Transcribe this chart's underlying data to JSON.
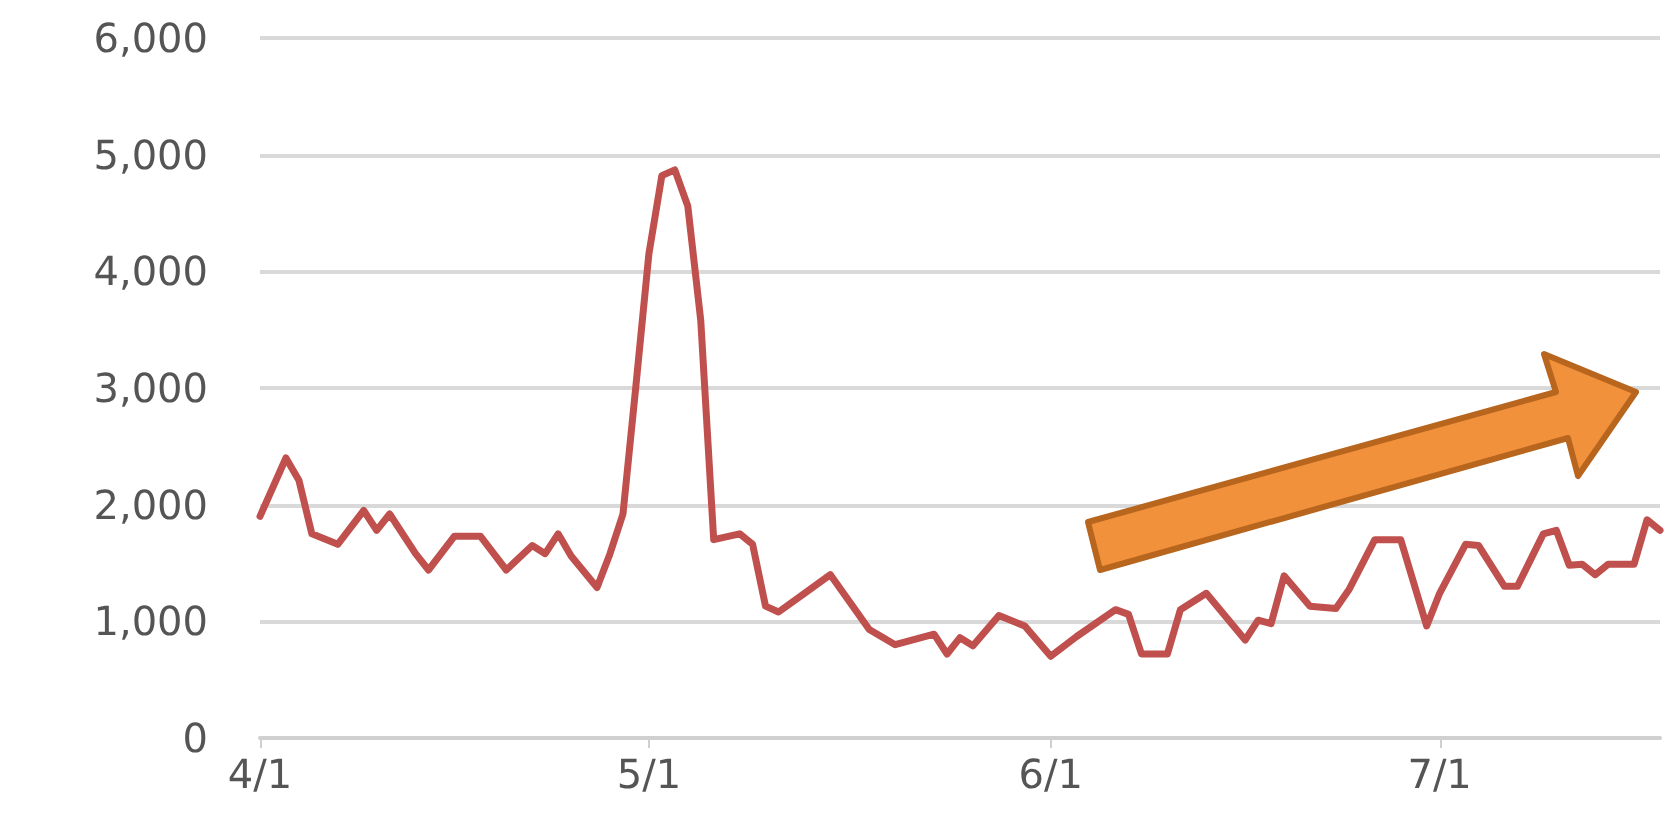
{
  "chart_data": {
    "type": "line",
    "line_style": "solid",
    "marker": "none",
    "grid": "y",
    "x": [
      "--04-01",
      "--04-03",
      "--04-04",
      "--04-05",
      "--04-07",
      "--04-09",
      "--04-10",
      "--04-11",
      "--04-13",
      "--04-14",
      "--04-16",
      "--04-18",
      "--04-20",
      "--04-22",
      "--04-23",
      "--04-24",
      "--04-25",
      "--04-27",
      "--04-28",
      "--04-29",
      "--04-30",
      "--05-01",
      "--05-02",
      "--05-03",
      "--05-04",
      "--05-05",
      "--05-06",
      "--05-08",
      "--05-09",
      "--05-10",
      "--05-11",
      "--05-13",
      "--05-15",
      "--05-18",
      "--05-20",
      "--05-23",
      "--05-24",
      "--05-25",
      "--05-26",
      "--05-28",
      "--05-30",
      "--06-01",
      "--06-03",
      "--06-06",
      "--06-07",
      "--06-08",
      "--06-10",
      "--06-11",
      "--06-13",
      "--06-16",
      "--06-17",
      "--06-18",
      "--06-19",
      "--06-21",
      "--06-23",
      "--06-24",
      "--06-26",
      "--06-28",
      "--06-30",
      "--07-01",
      "--07-03",
      "--07-04",
      "--07-06",
      "--07-07",
      "--07-09",
      "--07-10",
      "--07-11",
      "--07-12",
      "--07-13",
      "--07-14",
      "--07-16",
      "--07-17",
      "--07-18"
    ],
    "series": [
      {
        "color": "#c0504d",
        "values": [
          1900,
          2400,
          2210,
          1750,
          1660,
          1950,
          1780,
          1920,
          1580,
          1440,
          1730,
          1730,
          1440,
          1650,
          1580,
          1750,
          1560,
          1290,
          1580,
          1920,
          3020,
          4150,
          4820,
          4870,
          4560,
          3580,
          1700,
          1750,
          1660,
          1130,
          1080,
          1240,
          1400,
          930,
          800,
          890,
          720,
          860,
          790,
          1050,
          960,
          700,
          870,
          1100,
          1060,
          720,
          720,
          1100,
          1240,
          840,
          1010,
          980,
          1390,
          1130,
          1110,
          1270,
          1700,
          1700,
          960,
          1240,
          1660,
          1650,
          1300,
          1300,
          1750,
          1780,
          1480,
          1490,
          1400,
          1490,
          1490,
          1870,
          1780
        ]
      }
    ],
    "xlim": [
      "--04-01",
      "--07-18"
    ],
    "xticks": [
      {
        "value": "--04-01",
        "label": "4/1"
      },
      {
        "value": "--05-01",
        "label": "5/1"
      },
      {
        "value": "--06-01",
        "label": "6/1"
      },
      {
        "value": "--07-01",
        "label": "7/1"
      }
    ],
    "ylim": [
      0,
      6000
    ],
    "yticks": [
      0,
      {
        "value": 1000,
        "label": "1,000"
      },
      {
        "value": 2000,
        "label": "2,000"
      },
      {
        "value": 3000,
        "label": "3,000"
      },
      {
        "value": 4000,
        "label": "4,000"
      },
      {
        "value": 5000,
        "label": "5,000"
      },
      {
        "value": 6000,
        "label": "6,000"
      }
    ]
  }
}
